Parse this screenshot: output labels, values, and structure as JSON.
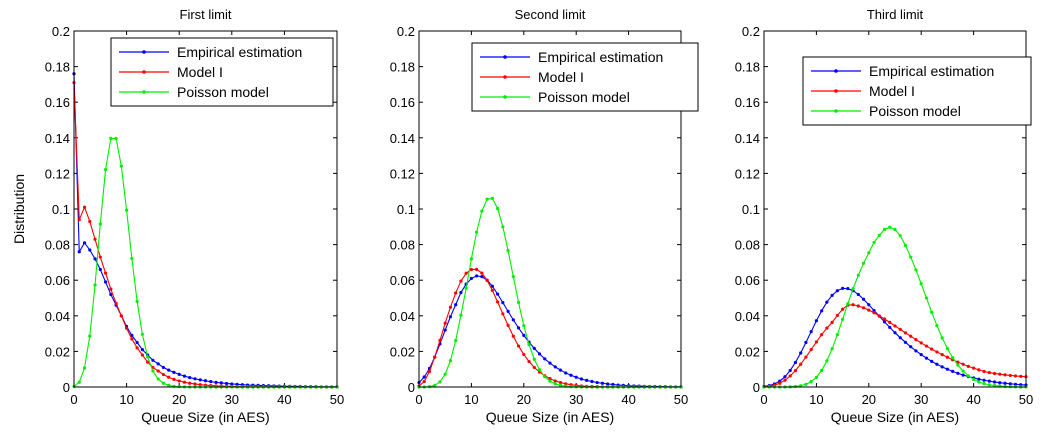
{
  "chart_data": [
    {
      "type": "line",
      "title": "First limit",
      "xlabel": "Queue Size (in AES)",
      "ylabel": "Distribution",
      "xlim": [
        0,
        50
      ],
      "ylim": [
        0,
        0.2
      ],
      "xticks": [
        0,
        10,
        20,
        30,
        40,
        50
      ],
      "yticks": [
        0,
        0.02,
        0.04,
        0.06,
        0.08,
        0.1,
        0.12,
        0.14,
        0.16,
        0.18,
        0.2
      ],
      "legend_position": "top-right",
      "series": [
        {
          "name": "Empirical estimation",
          "color": "#0000ff",
          "values": [
            0.176,
            0.076,
            0.081,
            0.077,
            0.072,
            0.066,
            0.059,
            0.052,
            0.046,
            0.04,
            0.034,
            0.029,
            0.025,
            0.021,
            0.018,
            0.015,
            0.013,
            0.011,
            0.0095,
            0.0082,
            0.0071,
            0.0061,
            0.0053,
            0.0046,
            0.004,
            0.0035,
            0.003,
            0.0026,
            0.0023,
            0.002,
            0.0017,
            0.0015,
            0.0013,
            0.0011,
            0.001,
            0.0009,
            0.0008,
            0.0007,
            0.0006,
            0.0005,
            0.0004,
            0.0004,
            0.0003,
            0.0003,
            0.0002,
            0.0002,
            0.0002,
            0.0001,
            0.0001,
            0.0001,
            0.0001
          ]
        },
        {
          "name": "Model I",
          "color": "#ff0000",
          "values": [
            0.171,
            0.094,
            0.101,
            0.093,
            0.083,
            0.073,
            0.064,
            0.055,
            0.047,
            0.04,
            0.033,
            0.027,
            0.022,
            0.018,
            0.014,
            0.011,
            0.009,
            0.007,
            0.0055,
            0.0043,
            0.0034,
            0.0027,
            0.0021,
            0.0017,
            0.0013,
            0.001,
            0.0008,
            0.0006,
            0.0005,
            0.0004,
            0.0003,
            0.0002,
            0.0002,
            0.0001,
            0.0001,
            0.0001,
            0.0001,
            0,
            0,
            0,
            0,
            0,
            0,
            0,
            0,
            0,
            0,
            0,
            0,
            0,
            0
          ]
        },
        {
          "name": "Poisson model",
          "color": "#00ee00",
          "values": [
            0.0003,
            0.0027,
            0.0107,
            0.0286,
            0.0573,
            0.0916,
            0.1221,
            0.1396,
            0.1396,
            0.1241,
            0.0993,
            0.0722,
            0.0481,
            0.0296,
            0.0169,
            0.009,
            0.0045,
            0.0021,
            0.0009,
            0.0004,
            0.0002,
            0.0001,
            0,
            0,
            0,
            0,
            0,
            0,
            0,
            0,
            0,
            0,
            0,
            0,
            0,
            0,
            0,
            0,
            0,
            0,
            0,
            0,
            0,
            0,
            0,
            0,
            0,
            0,
            0,
            0,
            0
          ]
        }
      ]
    },
    {
      "type": "line",
      "title": "Second limit",
      "xlabel": "Queue Size (in AES)",
      "ylabel": "",
      "xlim": [
        0,
        50
      ],
      "ylim": [
        0,
        0.2
      ],
      "xticks": [
        0,
        10,
        20,
        30,
        40,
        50
      ],
      "yticks": [
        0,
        0.02,
        0.04,
        0.06,
        0.08,
        0.1,
        0.12,
        0.14,
        0.16,
        0.18,
        0.2
      ],
      "legend_position": "top-right",
      "series": [
        {
          "name": "Empirical estimation",
          "color": "#0000ff",
          "values": [
            0.0025,
            0.0056,
            0.0104,
            0.0168,
            0.0242,
            0.032,
            0.0395,
            0.0462,
            0.0531,
            0.0578,
            0.061,
            0.0624,
            0.062,
            0.06,
            0.0566,
            0.0522,
            0.0474,
            0.0425,
            0.0377,
            0.0332,
            0.029,
            0.0252,
            0.0217,
            0.0186,
            0.0158,
            0.0134,
            0.0113,
            0.0095,
            0.0079,
            0.0066,
            0.0055,
            0.0045,
            0.0037,
            0.0031,
            0.0025,
            0.0021,
            0.0017,
            0.0014,
            0.0011,
            0.0009,
            0.0007,
            0.0006,
            0.0005,
            0.0004,
            0.0003,
            0.0003,
            0.0002,
            0.0002,
            0.0001,
            0.0001,
            0.0001
          ]
        },
        {
          "name": "Model I",
          "color": "#ff0000",
          "values": [
            0.0005,
            0.0031,
            0.0087,
            0.0168,
            0.0262,
            0.0359,
            0.0448,
            0.0528,
            0.0595,
            0.0639,
            0.066,
            0.0661,
            0.064,
            0.0599,
            0.0543,
            0.0478,
            0.0411,
            0.0346,
            0.0285,
            0.023,
            0.0183,
            0.0143,
            0.011,
            0.0084,
            0.0063,
            0.0047,
            0.0034,
            0.0025,
            0.0018,
            0.0013,
            0.0009,
            0.0006,
            0.0004,
            0.0003,
            0.0002,
            0.0001,
            0.0001,
            0.0001,
            0,
            0,
            0,
            0,
            0,
            0,
            0,
            0,
            0,
            0,
            0,
            0,
            0
          ]
        },
        {
          "name": "Poisson model",
          "color": "#00ee00",
          "values": [
            0,
            0,
            0.0002,
            0.0009,
            0.0029,
            0.0072,
            0.0148,
            0.0261,
            0.0403,
            0.0555,
            0.072,
            0.087,
            0.0988,
            0.1055,
            0.106,
            0.1003,
            0.09,
            0.0766,
            0.062,
            0.0475,
            0.0345,
            0.0238,
            0.0156,
            0.0097,
            0.0058,
            0.0033,
            0.0018,
            0.0009,
            0.0005,
            0.0002,
            0.0001,
            0,
            0,
            0,
            0,
            0,
            0,
            0,
            0,
            0,
            0,
            0,
            0,
            0,
            0,
            0,
            0,
            0,
            0,
            0,
            0
          ]
        }
      ]
    },
    {
      "type": "line",
      "title": "Third limit",
      "xlabel": "Queue Size (in AES)",
      "ylabel": "",
      "xlim": [
        0,
        50
      ],
      "ylim": [
        0,
        0.2
      ],
      "xticks": [
        0,
        10,
        20,
        30,
        40,
        50
      ],
      "yticks": [
        0,
        0.02,
        0.04,
        0.06,
        0.08,
        0.1,
        0.12,
        0.14,
        0.16,
        0.18,
        0.2
      ],
      "legend_position": "top-right",
      "series": [
        {
          "name": "Empirical estimation",
          "color": "#0000ff",
          "values": [
            0.0003,
            0.0008,
            0.0017,
            0.0033,
            0.0058,
            0.0093,
            0.0138,
            0.0191,
            0.025,
            0.0311,
            0.0372,
            0.0428,
            0.0477,
            0.0515,
            0.0541,
            0.0554,
            0.0553,
            0.0541,
            0.052,
            0.0493,
            0.0462,
            0.043,
            0.0398,
            0.0366,
            0.0335,
            0.0305,
            0.0277,
            0.0251,
            0.0226,
            0.0203,
            0.0182,
            0.0162,
            0.0144,
            0.0128,
            0.0113,
            0.01,
            0.0088,
            0.0077,
            0.0067,
            0.0059,
            0.0051,
            0.0044,
            0.0038,
            0.0033,
            0.0028,
            0.0024,
            0.0021,
            0.0018,
            0.0015,
            0.0013,
            0.0011
          ]
        },
        {
          "name": "Model I",
          "color": "#ff0000",
          "values": [
            0.0001,
            0.0004,
            0.001,
            0.0021,
            0.0038,
            0.0062,
            0.0092,
            0.0128,
            0.0168,
            0.021,
            0.0253,
            0.0294,
            0.0331,
            0.0363,
            0.0402,
            0.0437,
            0.046,
            0.0462,
            0.0455,
            0.0445,
            0.0432,
            0.0417,
            0.04,
            0.0382,
            0.0363,
            0.0343,
            0.0324,
            0.0304,
            0.0285,
            0.0266,
            0.0248,
            0.023,
            0.0213,
            0.0197,
            0.0182,
            0.0167,
            0.0153,
            0.014,
            0.0128,
            0.0116,
            0.0106,
            0.0096,
            0.0087,
            0.0081,
            0.0076,
            0.0072,
            0.0068,
            0.0065,
            0.0062,
            0.006,
            0.0058
          ]
        },
        {
          "name": "Poisson model",
          "color": "#00ee00",
          "values": [
            0,
            0,
            0,
            0,
            0,
            0.0001,
            0.0003,
            0.0007,
            0.0015,
            0.003,
            0.0054,
            0.0093,
            0.0147,
            0.0215,
            0.0294,
            0.038,
            0.0468,
            0.0552,
            0.0628,
            0.0695,
            0.0754,
            0.0812,
            0.0852,
            0.0885,
            0.0897,
            0.0885,
            0.085,
            0.0795,
            0.073,
            0.0658,
            0.058,
            0.05,
            0.042,
            0.0345,
            0.0276,
            0.0216,
            0.0165,
            0.0123,
            0.0089,
            0.0063,
            0.0043,
            0.0029,
            0.0019,
            0.0012,
            0.0008,
            0.0005,
            0.0003,
            0.0002,
            0.0001,
            0,
            0
          ]
        }
      ]
    }
  ]
}
